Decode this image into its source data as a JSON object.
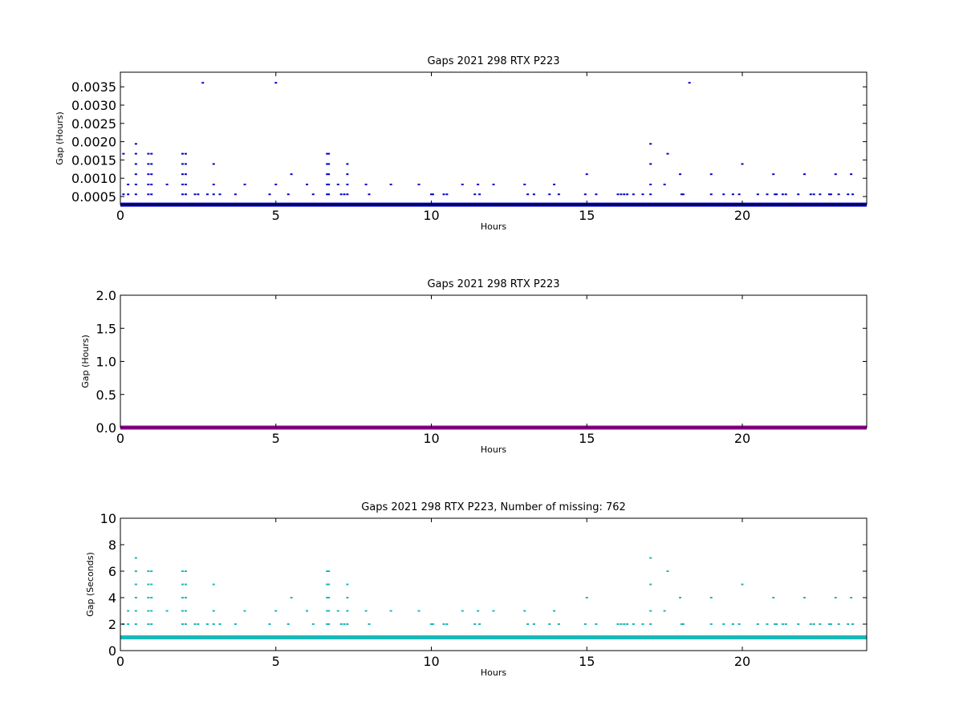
{
  "chart_data": [
    {
      "type": "scatter",
      "title": "Gaps 2021 298 RTX  P223",
      "xlabel": "Hours",
      "ylabel": "Gap (Hours)",
      "xlim": [
        0,
        24
      ],
      "ylim": [
        0.00028,
        0.0039
      ],
      "xticks": [
        0,
        5,
        10,
        15,
        20
      ],
      "yticks": [
        0.0005,
        0.001,
        0.0015,
        0.002,
        0.0025,
        0.003,
        0.0035
      ],
      "ytick_labels": [
        "0.0005",
        "0.0010",
        "0.0015",
        "0.0020",
        "0.0025",
        "0.0030",
        "0.0035"
      ],
      "color": "#0000cc",
      "baseline": 0.000278,
      "points": [
        [
          0.1,
          0.00167
        ],
        [
          0.1,
          0.00056
        ],
        [
          0.25,
          0.00056
        ],
        [
          0.25,
          0.00083
        ],
        [
          0.5,
          0.00194
        ],
        [
          0.5,
          0.00167
        ],
        [
          0.5,
          0.00139
        ],
        [
          0.5,
          0.00111
        ],
        [
          0.5,
          0.00083
        ],
        [
          0.5,
          0.00056
        ],
        [
          0.9,
          0.00167
        ],
        [
          0.9,
          0.00139
        ],
        [
          0.9,
          0.00111
        ],
        [
          0.9,
          0.00083
        ],
        [
          0.9,
          0.00056
        ],
        [
          1.0,
          0.00167
        ],
        [
          1.0,
          0.00139
        ],
        [
          1.0,
          0.00111
        ],
        [
          1.0,
          0.00083
        ],
        [
          1.0,
          0.00056
        ],
        [
          1.5,
          0.00083
        ],
        [
          2.0,
          0.00167
        ],
        [
          2.0,
          0.00139
        ],
        [
          2.0,
          0.00111
        ],
        [
          2.0,
          0.00083
        ],
        [
          2.0,
          0.00056
        ],
        [
          2.1,
          0.00167
        ],
        [
          2.1,
          0.00139
        ],
        [
          2.1,
          0.00111
        ],
        [
          2.1,
          0.00083
        ],
        [
          2.1,
          0.00056
        ],
        [
          2.4,
          0.00056
        ],
        [
          2.5,
          0.00056
        ],
        [
          2.65,
          0.00361
        ],
        [
          2.8,
          0.00056
        ],
        [
          3.0,
          0.00139
        ],
        [
          3.0,
          0.00083
        ],
        [
          3.0,
          0.00056
        ],
        [
          3.2,
          0.00056
        ],
        [
          3.7,
          0.00056
        ],
        [
          4.0,
          0.00083
        ],
        [
          4.8,
          0.00056
        ],
        [
          5.0,
          0.00361
        ],
        [
          5.0,
          0.00083
        ],
        [
          5.4,
          0.00056
        ],
        [
          5.5,
          0.00111
        ],
        [
          6.0,
          0.00083
        ],
        [
          6.2,
          0.00056
        ],
        [
          6.65,
          0.00167
        ],
        [
          6.65,
          0.00139
        ],
        [
          6.65,
          0.00111
        ],
        [
          6.65,
          0.00083
        ],
        [
          6.65,
          0.00056
        ],
        [
          6.7,
          0.00167
        ],
        [
          6.7,
          0.00139
        ],
        [
          6.7,
          0.00111
        ],
        [
          6.7,
          0.00083
        ],
        [
          6.7,
          0.00056
        ],
        [
          7.0,
          0.00083
        ],
        [
          7.1,
          0.00056
        ],
        [
          7.2,
          0.00056
        ],
        [
          7.3,
          0.00139
        ],
        [
          7.3,
          0.00111
        ],
        [
          7.3,
          0.00083
        ],
        [
          7.3,
          0.00056
        ],
        [
          7.9,
          0.00083
        ],
        [
          8.0,
          0.00056
        ],
        [
          8.7,
          0.00083
        ],
        [
          9.6,
          0.00083
        ],
        [
          10.0,
          0.00056
        ],
        [
          10.05,
          0.00056
        ],
        [
          10.4,
          0.00056
        ],
        [
          10.5,
          0.00056
        ],
        [
          11.0,
          0.00083
        ],
        [
          11.4,
          0.00056
        ],
        [
          11.5,
          0.00083
        ],
        [
          11.55,
          0.00056
        ],
        [
          12.0,
          0.00083
        ],
        [
          13.0,
          0.00083
        ],
        [
          13.1,
          0.00056
        ],
        [
          13.3,
          0.00056
        ],
        [
          13.8,
          0.00056
        ],
        [
          13.95,
          0.00083
        ],
        [
          14.1,
          0.00056
        ],
        [
          14.95,
          0.00056
        ],
        [
          15.0,
          0.00111
        ],
        [
          15.3,
          0.00056
        ],
        [
          16.0,
          0.00056
        ],
        [
          16.1,
          0.00056
        ],
        [
          16.2,
          0.00056
        ],
        [
          16.3,
          0.00056
        ],
        [
          16.5,
          0.00056
        ],
        [
          16.8,
          0.00056
        ],
        [
          17.05,
          0.00194
        ],
        [
          17.05,
          0.00139
        ],
        [
          17.05,
          0.00083
        ],
        [
          17.05,
          0.00056
        ],
        [
          17.5,
          0.00083
        ],
        [
          17.6,
          0.00167
        ],
        [
          18.0,
          0.00111
        ],
        [
          18.05,
          0.00056
        ],
        [
          18.1,
          0.00056
        ],
        [
          18.3,
          0.00361
        ],
        [
          19.0,
          0.00111
        ],
        [
          19.0,
          0.00056
        ],
        [
          19.4,
          0.00056
        ],
        [
          19.7,
          0.00056
        ],
        [
          19.9,
          0.00056
        ],
        [
          20.0,
          0.00139
        ],
        [
          20.5,
          0.00056
        ],
        [
          20.8,
          0.00056
        ],
        [
          21.0,
          0.00111
        ],
        [
          21.05,
          0.00056
        ],
        [
          21.1,
          0.00056
        ],
        [
          21.3,
          0.00056
        ],
        [
          21.4,
          0.00056
        ],
        [
          21.8,
          0.00056
        ],
        [
          22.0,
          0.00111
        ],
        [
          22.2,
          0.00056
        ],
        [
          22.3,
          0.00056
        ],
        [
          22.5,
          0.00056
        ],
        [
          22.8,
          0.00056
        ],
        [
          22.85,
          0.00056
        ],
        [
          23.0,
          0.00111
        ],
        [
          23.1,
          0.00056
        ],
        [
          23.4,
          0.00056
        ],
        [
          23.5,
          0.00111
        ],
        [
          23.55,
          0.00056
        ]
      ]
    },
    {
      "type": "scatter",
      "title": "Gaps 2021 298 RTX  P223",
      "xlabel": "Hours",
      "ylabel": "Gap (Hours)",
      "xlim": [
        0,
        24
      ],
      "ylim": [
        0,
        2.0
      ],
      "xticks": [
        0,
        5,
        10,
        15,
        20
      ],
      "yticks": [
        0.0,
        0.5,
        1.0,
        1.5,
        2.0
      ],
      "ytick_labels": [
        "0.0",
        "0.5",
        "1.0",
        "1.5",
        "2.0"
      ],
      "color": "#a000a0",
      "baseline": 0.0,
      "points": []
    },
    {
      "type": "scatter",
      "title": "Gaps 2021 298 RTX  P223, Number of missing: 762",
      "xlabel": "Hours",
      "ylabel": "Gap (Seconds)",
      "xlim": [
        0,
        24
      ],
      "ylim": [
        0,
        10
      ],
      "xticks": [
        0,
        5,
        10,
        15,
        20
      ],
      "yticks": [
        0,
        2,
        4,
        6,
        8,
        10
      ],
      "ytick_labels": [
        "0",
        "2",
        "4",
        "6",
        "8",
        "10"
      ],
      "color": "#1ab8b8",
      "baseline": 1,
      "points": [
        [
          0.1,
          2
        ],
        [
          0.25,
          3
        ],
        [
          0.25,
          2
        ],
        [
          0.5,
          7
        ],
        [
          0.5,
          6
        ],
        [
          0.5,
          5
        ],
        [
          0.5,
          4
        ],
        [
          0.5,
          3
        ],
        [
          0.5,
          2
        ],
        [
          0.9,
          6
        ],
        [
          0.9,
          5
        ],
        [
          0.9,
          4
        ],
        [
          0.9,
          3
        ],
        [
          0.9,
          2
        ],
        [
          1.0,
          6
        ],
        [
          1.0,
          5
        ],
        [
          1.0,
          4
        ],
        [
          1.0,
          3
        ],
        [
          1.0,
          2
        ],
        [
          1.5,
          3
        ],
        [
          2.0,
          6
        ],
        [
          2.0,
          5
        ],
        [
          2.0,
          4
        ],
        [
          2.0,
          3
        ],
        [
          2.0,
          2
        ],
        [
          2.1,
          6
        ],
        [
          2.1,
          5
        ],
        [
          2.1,
          4
        ],
        [
          2.1,
          3
        ],
        [
          2.1,
          2
        ],
        [
          2.4,
          2
        ],
        [
          2.5,
          2
        ],
        [
          2.8,
          2
        ],
        [
          3.0,
          5
        ],
        [
          3.0,
          3
        ],
        [
          3.0,
          2
        ],
        [
          3.2,
          2
        ],
        [
          3.7,
          2
        ],
        [
          4.0,
          3
        ],
        [
          4.8,
          2
        ],
        [
          5.0,
          3
        ],
        [
          5.4,
          2
        ],
        [
          5.5,
          4
        ],
        [
          6.0,
          3
        ],
        [
          6.2,
          2
        ],
        [
          6.65,
          6
        ],
        [
          6.65,
          5
        ],
        [
          6.65,
          4
        ],
        [
          6.65,
          3
        ],
        [
          6.65,
          2
        ],
        [
          6.7,
          6
        ],
        [
          6.7,
          5
        ],
        [
          6.7,
          4
        ],
        [
          6.7,
          3
        ],
        [
          6.7,
          2
        ],
        [
          7.0,
          3
        ],
        [
          7.1,
          2
        ],
        [
          7.2,
          2
        ],
        [
          7.3,
          5
        ],
        [
          7.3,
          4
        ],
        [
          7.3,
          3
        ],
        [
          7.3,
          2
        ],
        [
          7.9,
          3
        ],
        [
          8.0,
          2
        ],
        [
          8.7,
          3
        ],
        [
          9.6,
          3
        ],
        [
          10.0,
          2
        ],
        [
          10.05,
          2
        ],
        [
          10.4,
          2
        ],
        [
          10.5,
          2
        ],
        [
          11.0,
          3
        ],
        [
          11.4,
          2
        ],
        [
          11.5,
          3
        ],
        [
          11.55,
          2
        ],
        [
          12.0,
          3
        ],
        [
          13.0,
          3
        ],
        [
          13.1,
          2
        ],
        [
          13.3,
          2
        ],
        [
          13.8,
          2
        ],
        [
          13.95,
          3
        ],
        [
          14.1,
          2
        ],
        [
          14.95,
          2
        ],
        [
          15.0,
          4
        ],
        [
          15.3,
          2
        ],
        [
          16.0,
          2
        ],
        [
          16.1,
          2
        ],
        [
          16.2,
          2
        ],
        [
          16.3,
          2
        ],
        [
          16.5,
          2
        ],
        [
          16.8,
          2
        ],
        [
          17.05,
          7
        ],
        [
          17.05,
          5
        ],
        [
          17.05,
          3
        ],
        [
          17.05,
          2
        ],
        [
          17.5,
          3
        ],
        [
          17.6,
          6
        ],
        [
          18.0,
          4
        ],
        [
          18.05,
          2
        ],
        [
          18.1,
          2
        ],
        [
          19.0,
          4
        ],
        [
          19.0,
          2
        ],
        [
          19.4,
          2
        ],
        [
          19.7,
          2
        ],
        [
          19.9,
          2
        ],
        [
          20.0,
          5
        ],
        [
          20.5,
          2
        ],
        [
          20.8,
          2
        ],
        [
          21.0,
          4
        ],
        [
          21.05,
          2
        ],
        [
          21.1,
          2
        ],
        [
          21.3,
          2
        ],
        [
          21.4,
          2
        ],
        [
          21.8,
          2
        ],
        [
          22.0,
          4
        ],
        [
          22.2,
          2
        ],
        [
          22.3,
          2
        ],
        [
          22.5,
          2
        ],
        [
          22.8,
          2
        ],
        [
          22.85,
          2
        ],
        [
          23.0,
          4
        ],
        [
          23.1,
          2
        ],
        [
          23.4,
          2
        ],
        [
          23.5,
          4
        ],
        [
          23.55,
          2
        ]
      ]
    }
  ]
}
